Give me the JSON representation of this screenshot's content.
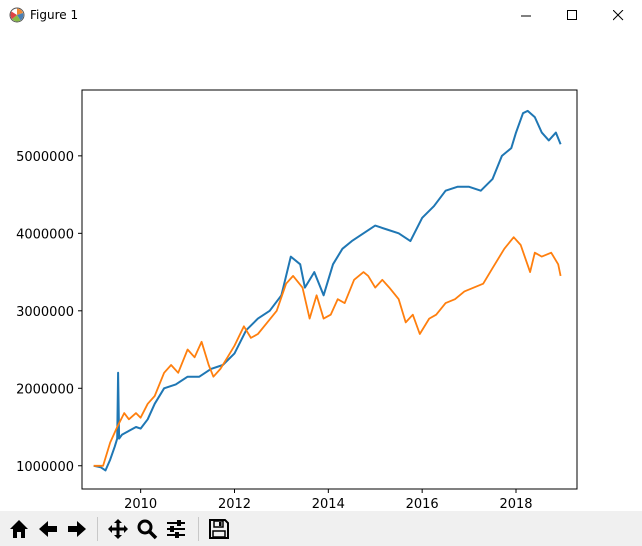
{
  "window": {
    "title": "Figure 1",
    "icon": "matplotlib-logo-icon",
    "controls": [
      "minimize-icon",
      "maximize-icon",
      "close-icon"
    ]
  },
  "toolbar": {
    "buttons": [
      {
        "name": "home-button",
        "icon": "home-icon"
      },
      {
        "name": "back-button",
        "icon": "arrow-left-icon"
      },
      {
        "name": "forward-button",
        "icon": "arrow-right-icon"
      },
      {
        "name": "pan-button",
        "icon": "move-icon"
      },
      {
        "name": "zoom-button",
        "icon": "magnifier-icon"
      },
      {
        "name": "configure-subplots-button",
        "icon": "sliders-icon"
      },
      {
        "name": "save-button",
        "icon": "floppy-disk-icon"
      }
    ]
  },
  "chart_data": {
    "type": "line",
    "title": "",
    "xlabel": "",
    "ylabel": "",
    "xlim": [
      2008.75,
      2019.3
    ],
    "ylim": [
      700000,
      5850000
    ],
    "xticks": [
      2010,
      2012,
      2014,
      2016,
      2018
    ],
    "xtick_labels": [
      "2010",
      "2012",
      "2014",
      "2016",
      "2018"
    ],
    "yticks": [
      1000000,
      2000000,
      3000000,
      4000000,
      5000000
    ],
    "ytick_labels": [
      "1000000",
      "2000000",
      "3000000",
      "4000000",
      "5000000"
    ],
    "grid": false,
    "legend": "none",
    "series": [
      {
        "color": "#1f77b4",
        "x": [
          2009.0,
          2009.15,
          2009.25,
          2009.35,
          2009.45,
          2009.5,
          2009.52,
          2009.54,
          2009.6,
          2009.75,
          2009.9,
          2010.0,
          2010.15,
          2010.3,
          2010.5,
          2010.75,
          2011.0,
          2011.25,
          2011.5,
          2011.75,
          2012.0,
          2012.25,
          2012.5,
          2012.75,
          2013.0,
          2013.2,
          2013.4,
          2013.5,
          2013.7,
          2013.9,
          2014.1,
          2014.3,
          2014.5,
          2014.75,
          2015.0,
          2015.25,
          2015.5,
          2015.75,
          2016.0,
          2016.25,
          2016.5,
          2016.75,
          2017.0,
          2017.25,
          2017.5,
          2017.7,
          2017.9,
          2018.0,
          2018.15,
          2018.25,
          2018.4,
          2018.55,
          2018.7,
          2018.85,
          2018.95
        ],
        "y": [
          1000000,
          980000,
          940000,
          1080000,
          1250000,
          1350000,
          2200000,
          1350000,
          1400000,
          1450000,
          1500000,
          1480000,
          1600000,
          1800000,
          2000000,
          2050000,
          2150000,
          2150000,
          2250000,
          2300000,
          2450000,
          2750000,
          2900000,
          3000000,
          3200000,
          3700000,
          3600000,
          3300000,
          3500000,
          3200000,
          3600000,
          3800000,
          3900000,
          4000000,
          4100000,
          4050000,
          4000000,
          3900000,
          4200000,
          4350000,
          4550000,
          4600000,
          4600000,
          4550000,
          4700000,
          5000000,
          5100000,
          5300000,
          5550000,
          5580000,
          5500000,
          5300000,
          5200000,
          5300000,
          5150000
        ]
      },
      {
        "color": "#ff7f0e",
        "x": [
          2009.0,
          2009.2,
          2009.35,
          2009.5,
          2009.65,
          2009.75,
          2009.9,
          2010.0,
          2010.15,
          2010.3,
          2010.5,
          2010.65,
          2010.8,
          2011.0,
          2011.15,
          2011.3,
          2011.45,
          2011.55,
          2011.7,
          2011.85,
          2012.0,
          2012.2,
          2012.35,
          2012.5,
          2012.7,
          2012.9,
          2013.1,
          2013.25,
          2013.45,
          2013.6,
          2013.75,
          2013.9,
          2014.05,
          2014.2,
          2014.35,
          2014.55,
          2014.75,
          2014.85,
          2015.0,
          2015.15,
          2015.3,
          2015.5,
          2015.65,
          2015.8,
          2015.95,
          2016.15,
          2016.3,
          2016.5,
          2016.7,
          2016.9,
          2017.1,
          2017.3,
          2017.5,
          2017.75,
          2017.95,
          2018.1,
          2018.3,
          2018.4,
          2018.55,
          2018.75,
          2018.9,
          2018.95
        ],
        "y": [
          1000000,
          1000000,
          1300000,
          1500000,
          1680000,
          1600000,
          1680000,
          1620000,
          1800000,
          1900000,
          2200000,
          2300000,
          2200000,
          2500000,
          2400000,
          2600000,
          2300000,
          2150000,
          2250000,
          2400000,
          2550000,
          2800000,
          2650000,
          2700000,
          2850000,
          3000000,
          3350000,
          3450000,
          3300000,
          2900000,
          3200000,
          2900000,
          2950000,
          3150000,
          3100000,
          3400000,
          3500000,
          3450000,
          3300000,
          3400000,
          3300000,
          3150000,
          2850000,
          2950000,
          2700000,
          2900000,
          2950000,
          3100000,
          3150000,
          3250000,
          3300000,
          3350000,
          3550000,
          3800000,
          3950000,
          3850000,
          3500000,
          3750000,
          3700000,
          3750000,
          3600000,
          3450000
        ]
      }
    ]
  }
}
